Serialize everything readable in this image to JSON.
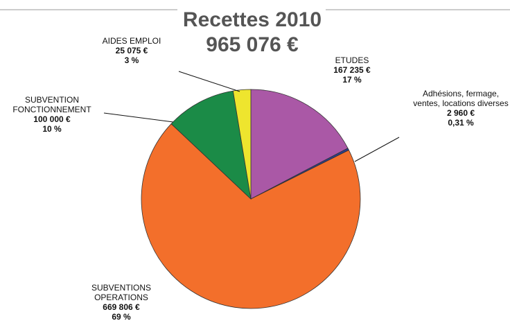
{
  "chart_data": {
    "type": "pie",
    "title": "Recettes 2010",
    "subtitle": "965 076 €",
    "categories": [
      "ETUDES",
      "Adhésions, fermage, ventes, locations diverses",
      "SUBVENTIONS OPERATIONS",
      "SUBVENTION FONCTIONNEMENT",
      "AIDES EMPLOI"
    ],
    "values": [
      167235,
      2960,
      669806,
      100000,
      25075
    ],
    "value_labels": [
      "167 235 €",
      "2 960 €",
      "669 806 €",
      "100 000 €",
      "25 075 €"
    ],
    "percent_labels": [
      "17 %",
      "0,31 %",
      "69 %",
      "10 %",
      "3 %"
    ],
    "colors": [
      "#aa58a6",
      "#2b3d8f",
      "#f36f2b",
      "#1b8b47",
      "#eee52e"
    ]
  }
}
